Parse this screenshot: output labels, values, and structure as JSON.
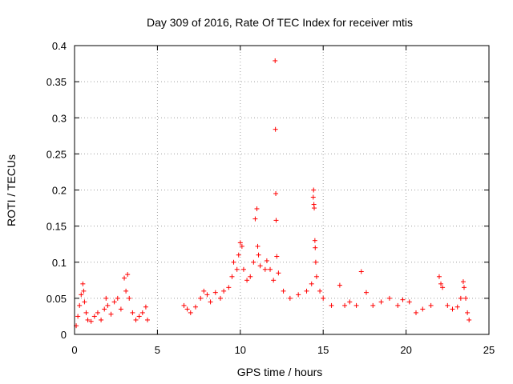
{
  "chart_data": {
    "type": "scatter",
    "title": "Day 309 of 2016, Rate Of TEC Index for receiver mtis",
    "xlabel": "GPS time / hours",
    "ylabel": "ROTI / TECUs",
    "xlim": [
      0,
      25
    ],
    "ylim": [
      0,
      0.4
    ],
    "xticks": [
      "0",
      "5",
      "10",
      "15",
      "20",
      "25"
    ],
    "yticks": [
      "0",
      "0.05",
      "0.1",
      "0.15",
      "0.2",
      "0.25",
      "0.3",
      "0.35",
      "0.4"
    ],
    "grid": true,
    "marker": "+",
    "color": "#ff0000",
    "series": [
      {
        "values": [
          [
            0.1,
            0.012
          ],
          [
            0.2,
            0.025
          ],
          [
            0.3,
            0.04
          ],
          [
            0.4,
            0.055
          ],
          [
            0.5,
            0.07
          ],
          [
            0.55,
            0.06
          ],
          [
            0.6,
            0.045
          ],
          [
            0.7,
            0.03
          ],
          [
            0.8,
            0.02
          ],
          [
            1.0,
            0.018
          ],
          [
            1.2,
            0.025
          ],
          [
            1.4,
            0.03
          ],
          [
            1.6,
            0.02
          ],
          [
            1.8,
            0.035
          ],
          [
            1.9,
            0.05
          ],
          [
            2.0,
            0.04
          ],
          [
            2.2,
            0.028
          ],
          [
            2.4,
            0.045
          ],
          [
            2.6,
            0.05
          ],
          [
            2.8,
            0.035
          ],
          [
            3.0,
            0.078
          ],
          [
            3.1,
            0.06
          ],
          [
            3.2,
            0.083
          ],
          [
            3.3,
            0.05
          ],
          [
            3.5,
            0.03
          ],
          [
            3.7,
            0.02
          ],
          [
            3.9,
            0.025
          ],
          [
            4.1,
            0.03
          ],
          [
            4.3,
            0.038
          ],
          [
            4.4,
            0.02
          ],
          [
            6.6,
            0.04
          ],
          [
            6.8,
            0.035
          ],
          [
            7.0,
            0.03
          ],
          [
            7.3,
            0.038
          ],
          [
            7.6,
            0.05
          ],
          [
            7.8,
            0.06
          ],
          [
            8.0,
            0.055
          ],
          [
            8.2,
            0.045
          ],
          [
            8.5,
            0.058
          ],
          [
            8.8,
            0.05
          ],
          [
            9.0,
            0.06
          ],
          [
            9.3,
            0.065
          ],
          [
            9.5,
            0.08
          ],
          [
            9.6,
            0.1
          ],
          [
            9.8,
            0.09
          ],
          [
            9.9,
            0.11
          ],
          [
            10.0,
            0.127
          ],
          [
            10.1,
            0.122
          ],
          [
            10.2,
            0.09
          ],
          [
            10.4,
            0.075
          ],
          [
            10.6,
            0.08
          ],
          [
            10.8,
            0.1
          ],
          [
            10.9,
            0.16
          ],
          [
            11.0,
            0.174
          ],
          [
            11.05,
            0.122
          ],
          [
            11.1,
            0.11
          ],
          [
            11.2,
            0.095
          ],
          [
            11.5,
            0.09
          ],
          [
            11.6,
            0.102
          ],
          [
            11.8,
            0.09
          ],
          [
            12.0,
            0.075
          ],
          [
            12.1,
            0.379
          ],
          [
            12.12,
            0.284
          ],
          [
            12.14,
            0.195
          ],
          [
            12.16,
            0.158
          ],
          [
            12.2,
            0.108
          ],
          [
            12.3,
            0.085
          ],
          [
            12.6,
            0.06
          ],
          [
            13.0,
            0.05
          ],
          [
            13.5,
            0.055
          ],
          [
            14.0,
            0.06
          ],
          [
            14.3,
            0.07
          ],
          [
            14.4,
            0.19
          ],
          [
            14.42,
            0.2
          ],
          [
            14.44,
            0.18
          ],
          [
            14.46,
            0.175
          ],
          [
            14.5,
            0.13
          ],
          [
            14.52,
            0.12
          ],
          [
            14.55,
            0.1
          ],
          [
            14.6,
            0.08
          ],
          [
            14.8,
            0.06
          ],
          [
            15.0,
            0.05
          ],
          [
            15.5,
            0.04
          ],
          [
            16.0,
            0.068
          ],
          [
            16.3,
            0.04
          ],
          [
            16.6,
            0.045
          ],
          [
            17.0,
            0.04
          ],
          [
            17.3,
            0.087
          ],
          [
            17.6,
            0.058
          ],
          [
            18.0,
            0.04
          ],
          [
            18.5,
            0.045
          ],
          [
            19.0,
            0.05
          ],
          [
            19.5,
            0.04
          ],
          [
            19.8,
            0.048
          ],
          [
            20.2,
            0.045
          ],
          [
            20.6,
            0.03
          ],
          [
            21.0,
            0.035
          ],
          [
            21.5,
            0.04
          ],
          [
            22.0,
            0.08
          ],
          [
            22.1,
            0.07
          ],
          [
            22.2,
            0.065
          ],
          [
            22.5,
            0.04
          ],
          [
            22.8,
            0.035
          ],
          [
            23.1,
            0.038
          ],
          [
            23.3,
            0.05
          ],
          [
            23.45,
            0.073
          ],
          [
            23.5,
            0.065
          ],
          [
            23.6,
            0.05
          ],
          [
            23.7,
            0.03
          ],
          [
            23.8,
            0.02
          ]
        ]
      }
    ]
  }
}
